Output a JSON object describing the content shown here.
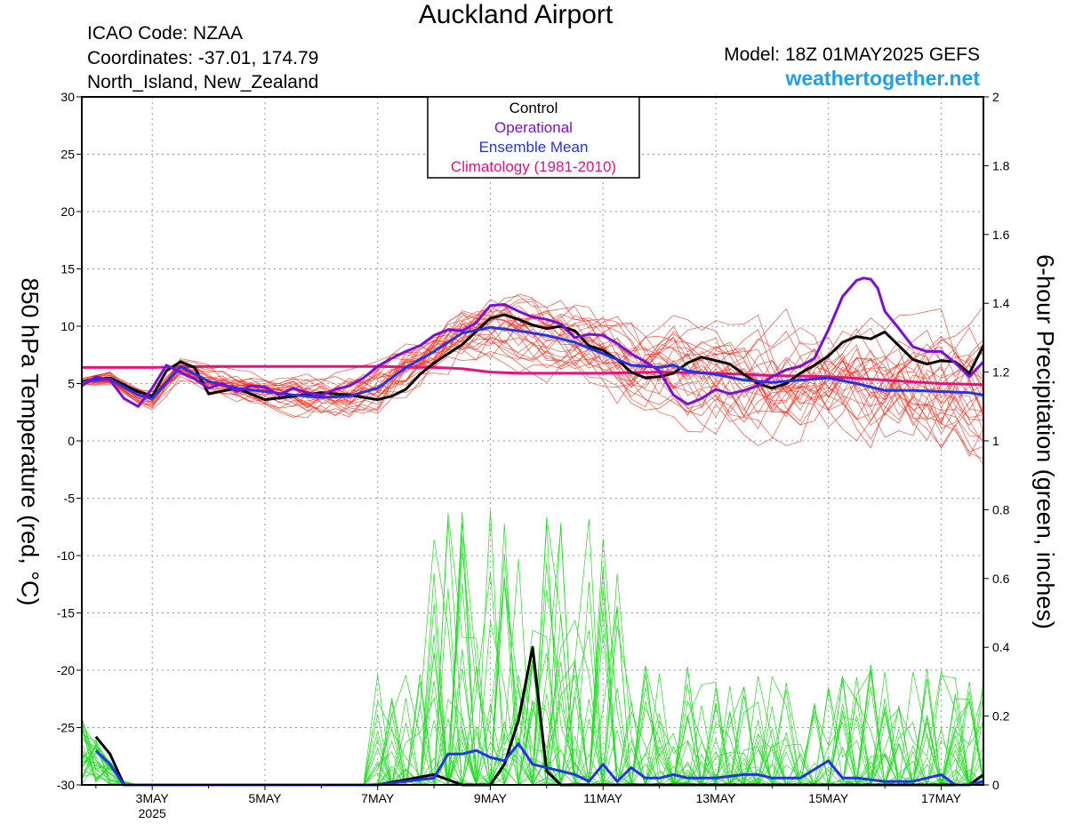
{
  "header": {
    "title": "Auckland Airport",
    "icao": "ICAO Code: NZAA",
    "coords": "Coordinates: -37.01, 174.79",
    "region": "North_Island, New_Zealand",
    "model": "Model: 18Z 01MAY2025 GEFS",
    "site": "weathertogether.net"
  },
  "colors": {
    "members": "#ff2a1a",
    "control": "#000000",
    "operational": "#7a10d8",
    "mean": "#2233ee",
    "climatology": "#e8127c",
    "precip": "#22dd22",
    "site": "#1ea0ec"
  },
  "chart_data": {
    "type": "line",
    "title": "Auckland Airport",
    "ylabel": "850 hPa Temperature (red, °C)",
    "y2label": "6-hour Precipitation (green, inches)",
    "x_range": [
      1.75,
      17.75
    ],
    "x_unit": "day of May 2025",
    "x_ticks": [
      {
        "x": 3,
        "label": "3MAY"
      },
      {
        "x": 5,
        "label": "5MAY"
      },
      {
        "x": 7,
        "label": "7MAY"
      },
      {
        "x": 9,
        "label": "9MAY"
      },
      {
        "x": 11,
        "label": "11MAY"
      },
      {
        "x": 13,
        "label": "13MAY"
      },
      {
        "x": 15,
        "label": "15MAY"
      },
      {
        "x": 17,
        "label": "17MAY"
      }
    ],
    "x_sublabel": "2025",
    "ylim": [
      -30,
      30
    ],
    "y_ticks": [
      30,
      25,
      20,
      15,
      10,
      5,
      0,
      -5,
      -10,
      -15,
      -20,
      -25,
      -30
    ],
    "y2lim": [
      0,
      2
    ],
    "y2_ticks": [
      "2",
      "1.8",
      "1.6",
      "1.4",
      "1.2",
      "1",
      "0.8",
      "0.6",
      "0.4",
      "0.2",
      "0"
    ],
    "grid": true,
    "legend_position": "top-center",
    "legend": [
      "Control",
      "Operational",
      "Ensemble Mean",
      "Climatology (1981-2010)"
    ],
    "temperature_series": [
      {
        "name": "Control",
        "x": [
          1.75,
          2.25,
          2.75,
          3.0,
          3.25,
          3.5,
          3.75,
          4.0,
          4.5,
          5.0,
          5.5,
          6.0,
          6.5,
          7.0,
          7.25,
          7.5,
          7.75,
          8.0,
          8.5,
          9.0,
          9.25,
          9.5,
          9.75,
          10.0,
          10.25,
          10.5,
          10.75,
          11.0,
          11.25,
          11.5,
          11.75,
          12.0,
          12.25,
          12.5,
          12.75,
          13.0,
          13.25,
          13.5,
          13.75,
          14.0,
          14.25,
          14.5,
          14.75,
          15.0,
          15.25,
          15.5,
          15.75,
          16.0,
          16.25,
          16.5,
          16.75,
          17.0,
          17.25,
          17.5,
          17.75
        ],
        "y": [
          5.2,
          5.5,
          4.3,
          3.9,
          6.1,
          6.9,
          6.4,
          4.1,
          4.6,
          3.6,
          3.9,
          4.2,
          4.0,
          3.6,
          3.9,
          4.5,
          5.8,
          6.8,
          8.4,
          10.7,
          11.0,
          10.6,
          10.1,
          9.8,
          10.0,
          9.6,
          8.3,
          7.9,
          7.1,
          6.0,
          5.5,
          5.6,
          5.9,
          6.8,
          7.3,
          7.0,
          6.7,
          5.8,
          5.0,
          4.6,
          5.0,
          5.9,
          6.6,
          7.4,
          8.6,
          9.1,
          8.9,
          9.5,
          8.3,
          7.1,
          6.7,
          7.0,
          6.9,
          5.9,
          8.3
        ]
      },
      {
        "name": "Operational",
        "x": [
          1.75,
          2.0,
          2.25,
          2.5,
          2.75,
          3.0,
          3.25,
          3.5,
          3.75,
          4.0,
          4.25,
          4.5,
          4.75,
          5.0,
          5.25,
          5.5,
          5.75,
          6.0,
          6.25,
          6.5,
          6.75,
          7.0,
          7.25,
          7.5,
          7.75,
          8.0,
          8.25,
          8.5,
          8.75,
          9.0,
          9.25,
          9.5,
          9.75,
          10.0,
          10.25,
          10.5,
          10.75,
          11.0,
          11.25,
          11.5,
          11.75,
          12.0,
          12.25,
          12.5,
          12.75,
          13.0,
          13.25,
          13.5,
          13.75,
          14.0,
          14.25,
          14.5,
          14.75,
          15.0,
          15.25,
          15.5,
          15.625,
          15.75,
          15.875,
          16.0,
          16.25,
          16.5,
          16.75,
          17.0,
          17.25,
          17.5,
          17.75
        ],
        "y": [
          4.8,
          5.6,
          5.3,
          3.7,
          3.0,
          4.6,
          6.6,
          6.0,
          5.4,
          4.6,
          5.0,
          4.3,
          4.8,
          4.7,
          4.0,
          4.6,
          4.2,
          4.0,
          4.5,
          4.8,
          5.5,
          6.5,
          7.2,
          7.8,
          8.3,
          9.2,
          9.7,
          9.6,
          10.3,
          11.8,
          11.9,
          11.3,
          10.8,
          10.6,
          10.2,
          9.0,
          9.3,
          9.2,
          8.5,
          7.6,
          6.9,
          6.1,
          4.0,
          3.2,
          3.7,
          4.5,
          4.1,
          4.4,
          4.8,
          5.6,
          6.2,
          6.5,
          7.2,
          9.7,
          12.6,
          14.0,
          14.2,
          14.1,
          13.3,
          11.3,
          9.8,
          8.2,
          7.8,
          7.8,
          6.8,
          5.6,
          6.9
        ]
      },
      {
        "name": "Ensemble Mean",
        "x": [
          1.75,
          2.25,
          2.75,
          3.0,
          3.5,
          4.0,
          4.5,
          5.0,
          5.5,
          6.0,
          6.5,
          7.0,
          7.5,
          8.0,
          8.5,
          9.0,
          9.5,
          10.0,
          10.5,
          11.0,
          11.5,
          12.0,
          12.25,
          12.5,
          13.0,
          13.5,
          14.0,
          14.5,
          15.0,
          15.5,
          16.0,
          16.5,
          17.0,
          17.5,
          17.75
        ],
        "y": [
          5.2,
          5.4,
          4.0,
          3.7,
          6.5,
          5.2,
          4.6,
          4.3,
          4.0,
          3.8,
          3.9,
          4.6,
          6.4,
          7.8,
          9.4,
          9.9,
          9.6,
          9.2,
          8.6,
          7.6,
          6.6,
          6.4,
          6.6,
          6.1,
          5.8,
          5.3,
          5.1,
          5.3,
          5.5,
          5.0,
          4.4,
          4.4,
          4.3,
          4.2,
          4.0
        ]
      },
      {
        "name": "Climatology (1981-2010)",
        "x": [
          1.75,
          3.0,
          4.0,
          5.0,
          6.0,
          7.0,
          8.0,
          8.5,
          9.0,
          9.5,
          10.0,
          11.0,
          12.0,
          13.0,
          14.0,
          15.0,
          16.0,
          17.0,
          17.75
        ],
        "y": [
          6.4,
          6.4,
          6.5,
          6.5,
          6.5,
          6.5,
          6.4,
          6.3,
          6.0,
          5.9,
          5.9,
          5.9,
          6.0,
          5.9,
          5.7,
          5.6,
          5.3,
          5.0,
          4.9
        ]
      }
    ],
    "precipitation_series": [
      {
        "name": "Control",
        "x": [
          2.0,
          2.25,
          2.5,
          7.0,
          8.0,
          8.5,
          9.0,
          9.25,
          9.5,
          9.75,
          10.0,
          10.25,
          17.5,
          17.75
        ],
        "y": [
          0.14,
          0.09,
          0.0,
          0.0,
          0.03,
          0.0,
          0.0,
          0.06,
          0.19,
          0.4,
          0.04,
          0.0,
          0.0,
          0.03
        ]
      },
      {
        "name": "Ensemble Mean",
        "x": [
          2.0,
          2.25,
          2.5,
          7.0,
          7.5,
          8.0,
          8.25,
          8.5,
          8.75,
          9.0,
          9.25,
          9.5,
          9.75,
          10.0,
          10.5,
          10.75,
          11.0,
          11.25,
          11.5,
          11.75,
          12.0,
          12.25,
          12.5,
          13.0,
          13.5,
          13.75,
          14.0,
          14.5,
          15.0,
          15.25,
          15.5,
          16.0,
          16.5,
          17.0,
          17.25,
          17.5,
          17.75
        ],
        "y": [
          0.1,
          0.06,
          0.0,
          0.0,
          0.01,
          0.02,
          0.09,
          0.09,
          0.1,
          0.08,
          0.07,
          0.12,
          0.06,
          0.05,
          0.03,
          0.01,
          0.06,
          0.01,
          0.05,
          0.02,
          0.02,
          0.03,
          0.02,
          0.02,
          0.03,
          0.03,
          0.02,
          0.02,
          0.07,
          0.02,
          0.02,
          0.01,
          0.01,
          0.03,
          0.0,
          0.0,
          0.01
        ]
      }
    ],
    "members_count": 30
  }
}
